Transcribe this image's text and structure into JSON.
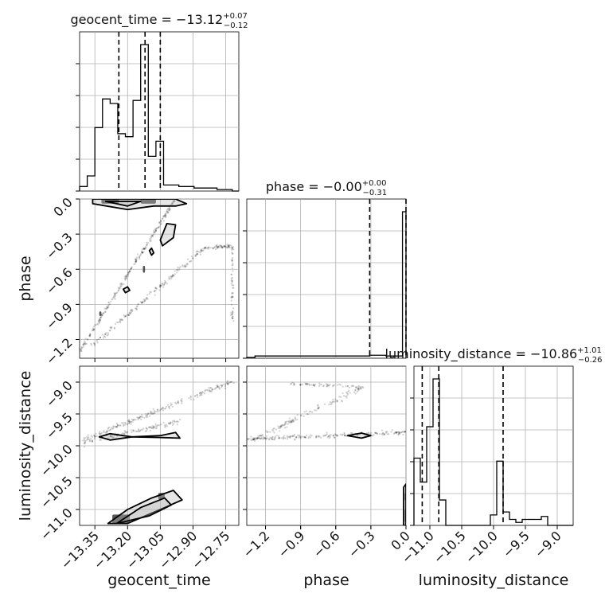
{
  "chart_data": {
    "type": "corner",
    "parameters": [
      "geocent_time",
      "phase",
      "luminosity_distance"
    ],
    "axis_labels": {
      "geocent_time": "geocent_time",
      "phase": "phase",
      "luminosity_distance": "luminosity_distance"
    },
    "ranges": {
      "geocent_time": [
        -13.42,
        -12.69
      ],
      "phase": [
        -1.36,
        0.0
      ],
      "luminosity_distance": [
        -11.25,
        -8.75
      ]
    },
    "ticks": {
      "geocent_time": [
        -13.35,
        -13.2,
        -13.05,
        -12.9,
        -12.75
      ],
      "phase": [
        -1.2,
        -0.9,
        -0.6,
        -0.3,
        0.0
      ],
      "luminosity_distance": [
        -11.0,
        -10.5,
        -10.0,
        -9.5,
        -9.0
      ]
    },
    "tick_labels": {
      "geocent_time": [
        "−13.35",
        "−13.20",
        "−13.05",
        "−12.90",
        "−12.75"
      ],
      "phase": [
        "−1.2",
        "−0.9",
        "−0.6",
        "−0.3",
        "0.0"
      ],
      "luminosity_distance": [
        "−11.0",
        "−10.5",
        "−10.0",
        "−9.5",
        "−9.0"
      ],
      "phase_y": [
        "−1.2",
        "−0.9",
        "−0.6",
        "−0.3",
        "0.0"
      ],
      "luminosity_distance_y": [
        "−11.0",
        "−10.5",
        "−10.0",
        "−9.5",
        "−9.0"
      ]
    },
    "titles": [
      {
        "main": "geocent_time = −13.12",
        "sup": "+0.07",
        "sub": "−0.12"
      },
      {
        "main": "phase = −0.00",
        "sup": "+0.00",
        "sub": "−0.31"
      },
      {
        "main": "luminosity_distance = −10.86",
        "sup": "+1.01",
        "sub": "−0.26"
      }
    ],
    "quantiles": {
      "geocent_time": [
        -13.24,
        -13.12,
        -13.05
      ],
      "phase": [
        -0.31,
        0.0
      ],
      "luminosity_distance": [
        -11.12,
        -10.86,
        -9.85
      ]
    },
    "histograms": {
      "geocent_time": {
        "edges": [
          -13.42,
          -13.385,
          -13.35,
          -13.315,
          -13.28,
          -13.245,
          -13.21,
          -13.175,
          -13.14,
          -13.105,
          -13.07,
          -13.035,
          -13.0,
          -12.965,
          -12.93,
          -12.895,
          -12.86,
          -12.825,
          -12.79,
          -12.755,
          -12.72,
          -12.69
        ],
        "counts": [
          0.03,
          0.1,
          0.42,
          0.61,
          0.58,
          0.38,
          0.36,
          0.6,
          0.97,
          0.23,
          0.33,
          0.04,
          0.04,
          0.03,
          0.03,
          0.02,
          0.02,
          0.02,
          0.01,
          0.01,
          0.0
        ]
      },
      "phase": {
        "edges": [
          -1.36,
          -1.29,
          -1.22,
          -1.15,
          -1.08,
          -1.01,
          -0.94,
          -0.87,
          -0.8,
          -0.73,
          -0.66,
          -0.59,
          -0.52,
          -0.45,
          -0.38,
          -0.31,
          -0.24,
          -0.17,
          -0.1,
          -0.03,
          0.0
        ],
        "counts": [
          0.005,
          0.015,
          0.015,
          0.015,
          0.015,
          0.015,
          0.015,
          0.015,
          0.015,
          0.015,
          0.015,
          0.015,
          0.015,
          0.015,
          0.015,
          0.02,
          0.02,
          0.015,
          0.015,
          0.98
        ]
      },
      "luminosity_distance": {
        "edges": [
          -11.25,
          -11.15,
          -11.05,
          -10.95,
          -10.85,
          -10.75,
          -10.65,
          -10.55,
          -10.45,
          -10.35,
          -10.25,
          -10.15,
          -10.05,
          -9.95,
          -9.85,
          -9.75,
          -9.65,
          -9.55,
          -9.45,
          -9.35,
          -9.25,
          -9.15,
          -9.05,
          -8.95
        ],
        "counts": [
          0.45,
          0.29,
          0.66,
          0.98,
          0.17,
          0.0,
          0.0,
          0.0,
          0.0,
          0.0,
          0.0,
          0.0,
          0.07,
          0.43,
          0.09,
          0.04,
          0.02,
          0.04,
          0.04,
          0.04,
          0.06,
          0.0,
          0.0
        ]
      }
    },
    "scatter": {
      "geocent_time_vs_phase": {
        "bands": [
          {
            "from": [
              -13.42,
              -1.3
            ],
            "to": [
              -12.98,
              0.0
            ],
            "density": 260,
            "spread": 0.03
          },
          {
            "from": [
              -13.36,
              -1.25
            ],
            "to": [
              -12.85,
              -0.42
            ],
            "density": 180,
            "spread": 0.05
          },
          {
            "from": [
              -12.85,
              -0.42
            ],
            "to": [
              -12.73,
              -0.4
            ],
            "density": 60,
            "spread": 0.04
          },
          {
            "from": [
              -12.72,
              -0.4
            ],
            "to": [
              -12.72,
              -1.05
            ],
            "density": 60,
            "spread": 0.03
          }
        ],
        "contours": [
          {
            "points": [
              [
                -13.36,
                -0.04
              ],
              [
                -13.2,
                -0.09
              ],
              [
                -13.08,
                -0.06
              ],
              [
                -12.98,
                -0.06
              ],
              [
                -12.93,
                -0.04
              ],
              [
                -12.98,
                0.0
              ],
              [
                -13.36,
                0.0
              ]
            ]
          },
          {
            "points": [
              [
                -13.3,
                -0.02
              ],
              [
                -13.2,
                -0.06
              ],
              [
                -13.14,
                -0.02
              ]
            ]
          },
          {
            "points": [
              [
                -13.04,
                -0.4
              ],
              [
                -12.99,
                -0.33
              ],
              [
                -12.98,
                -0.22
              ],
              [
                -13.02,
                -0.21
              ],
              [
                -13.05,
                -0.35
              ]
            ]
          },
          {
            "points": [
              [
                -13.09,
                -0.42
              ],
              [
                -13.08,
                -0.46
              ],
              [
                -13.09,
                -0.48
              ],
              [
                -13.1,
                -0.44
              ]
            ]
          },
          {
            "points": [
              [
                -13.2,
                -0.75
              ],
              [
                -13.19,
                -0.78
              ],
              [
                -13.21,
                -0.8
              ],
              [
                -13.22,
                -0.77
              ]
            ]
          }
        ],
        "filled": [
          {
            "x": -13.13,
            "y": -0.63,
            "w": 0.01,
            "h": 0.06
          },
          {
            "x": -13.33,
            "y": -1.0,
            "w": 0.01,
            "h": 0.04
          },
          {
            "x": -13.32,
            "y": -0.04,
            "w": 0.08,
            "h": 0.05
          },
          {
            "x": -13.14,
            "y": -0.04,
            "w": 0.07,
            "h": 0.05
          }
        ]
      },
      "geocent_time_vs_luminosity_distance": {
        "bands": [
          {
            "from": [
              -13.42,
              -9.93
            ],
            "to": [
              -12.72,
              -8.99
            ],
            "density": 220,
            "spread": 0.05
          },
          {
            "from": [
              -13.4,
              -9.95
            ],
            "to": [
              -12.95,
              -9.6
            ],
            "density": 120,
            "spread": 0.05
          }
        ],
        "contours": [
          {
            "points": [
              [
                -13.33,
                -9.86
              ],
              [
                -13.28,
                -9.81
              ],
              [
                -13.18,
                -9.86
              ],
              [
                -13.05,
                -9.84
              ],
              [
                -12.98,
                -9.79
              ],
              [
                -12.96,
                -9.88
              ],
              [
                -13.05,
                -9.87
              ],
              [
                -13.18,
                -9.86
              ],
              [
                -13.28,
                -9.91
              ]
            ]
          },
          {
            "points": [
              [
                -13.29,
                -11.22
              ],
              [
                -13.2,
                -11.0
              ],
              [
                -13.09,
                -10.82
              ],
              [
                -12.99,
                -10.7
              ],
              [
                -12.95,
                -10.85
              ],
              [
                -13.05,
                -11.0
              ],
              [
                -13.2,
                -11.22
              ]
            ]
          },
          {
            "points": [
              [
                -13.25,
                -11.22
              ],
              [
                -13.14,
                -10.97
              ],
              [
                -13.03,
                -10.82
              ],
              [
                -13.0,
                -10.93
              ],
              [
                -13.1,
                -11.1
              ]
            ]
          }
        ],
        "filled": [
          {
            "x": -13.06,
            "y": -10.84,
            "w": 0.03,
            "h": 0.1
          },
          {
            "x": -13.27,
            "y": -11.22,
            "w": 0.08,
            "h": 0.14
          }
        ]
      },
      "phase_vs_luminosity_distance": {
        "bands": [
          {
            "from": [
              -1.36,
              -9.9
            ],
            "to": [
              0.0,
              -9.79
            ],
            "density": 220,
            "spread": 0.04
          },
          {
            "from": [
              -1.3,
              -9.9
            ],
            "to": [
              -0.35,
              -9.06
            ],
            "density": 140,
            "spread": 0.06
          },
          {
            "from": [
              -1.0,
              -9.03
            ],
            "to": [
              -0.4,
              -9.07
            ],
            "density": 60,
            "spread": 0.03
          }
        ],
        "contours": [
          {
            "points": [
              [
                -0.5,
                -9.84
              ],
              [
                -0.38,
                -9.8
              ],
              [
                -0.3,
                -9.84
              ],
              [
                -0.38,
                -9.88
              ]
            ]
          },
          {
            "points": [
              [
                -0.02,
                -11.25
              ],
              [
                -0.02,
                -10.65
              ],
              [
                0.0,
                -10.6
              ],
              [
                0.0,
                -11.25
              ]
            ]
          }
        ],
        "filled": [
          {
            "x": -0.01,
            "y": -10.86,
            "w": 0.01,
            "h": 0.12
          },
          {
            "x": -0.01,
            "y": -11.2,
            "w": 0.01,
            "h": 0.2
          }
        ]
      }
    }
  }
}
